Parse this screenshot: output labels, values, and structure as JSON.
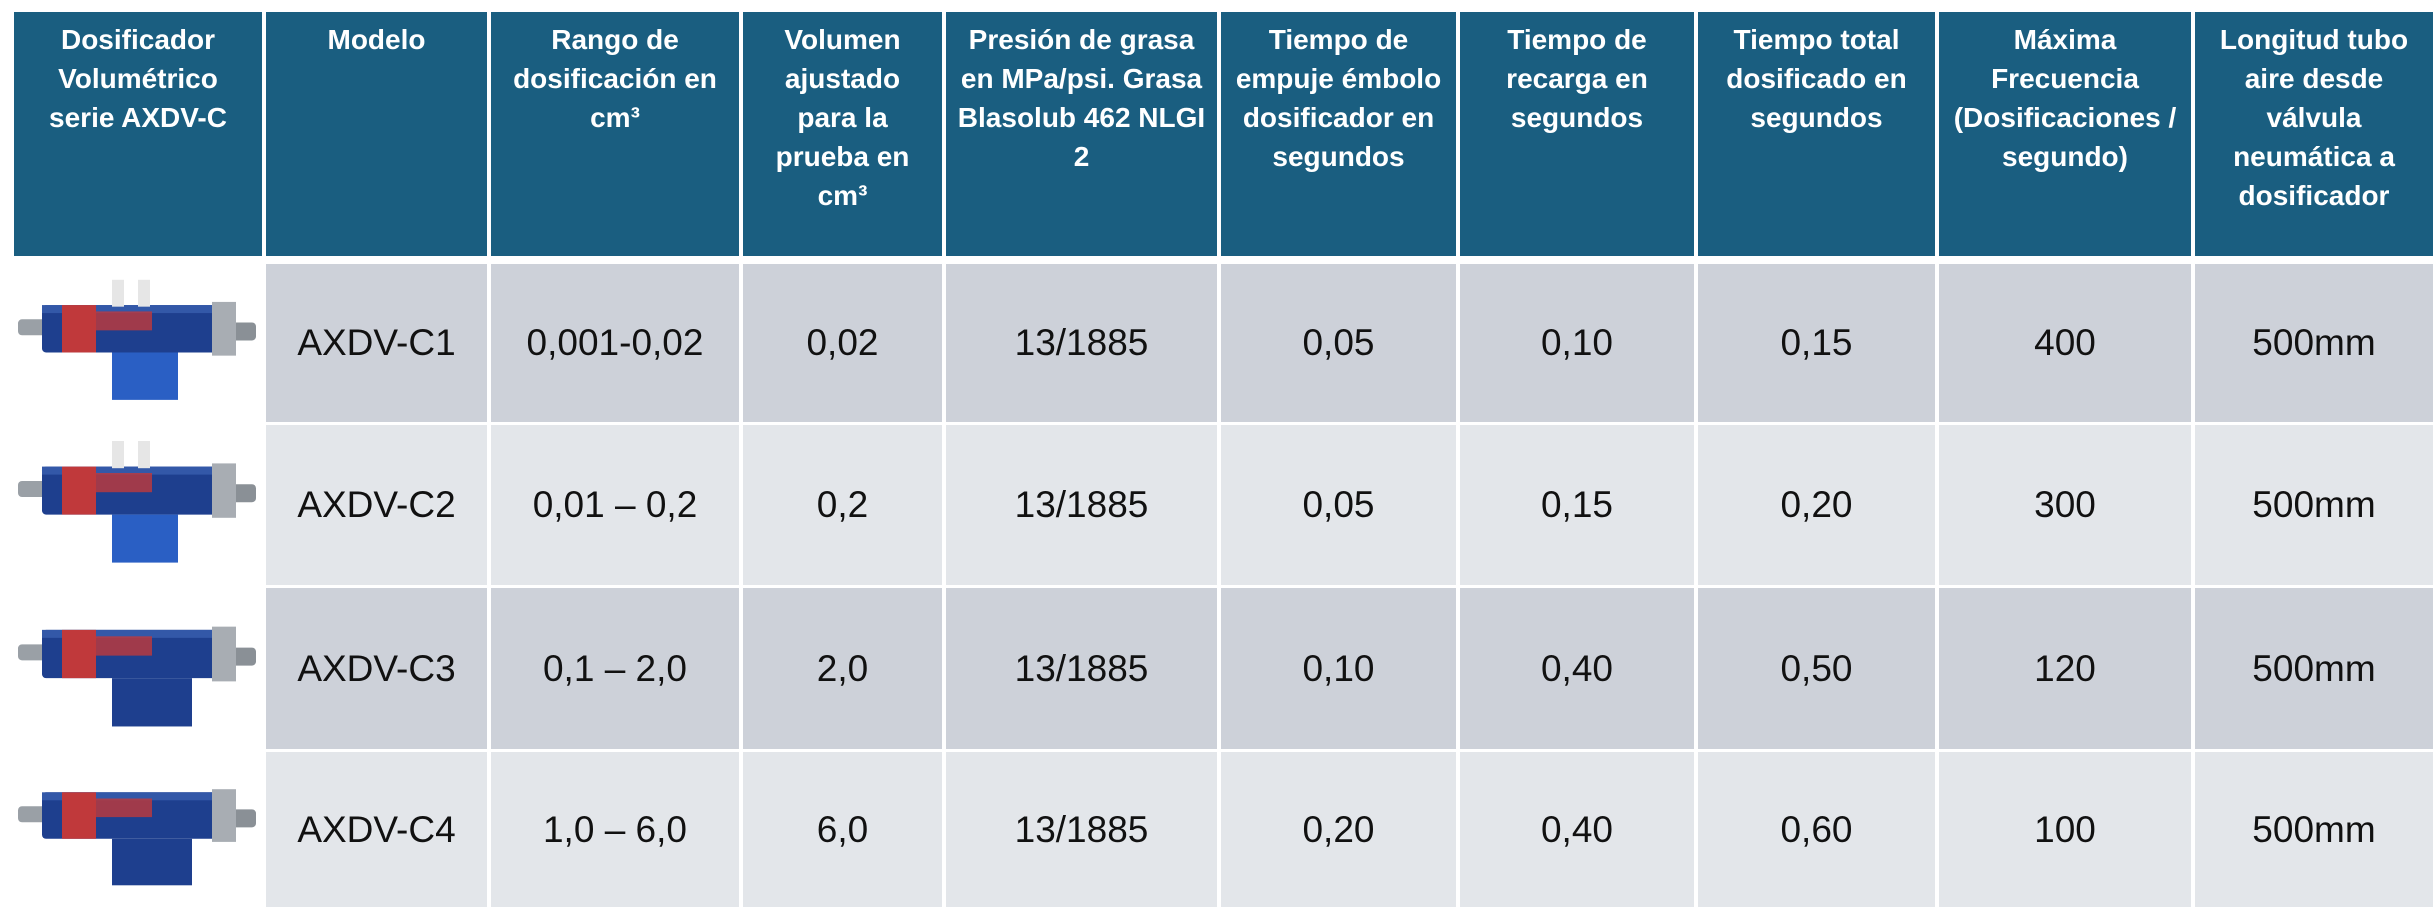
{
  "table": {
    "header": [
      "Dosificador Volumétrico serie AXDV-C",
      "Modelo",
      "Rango de dosificación en cm³",
      "Volumen ajustado para la prueba en cm³",
      "Presión de grasa en MPa/psi. Grasa Blasolub 462 NLGI 2",
      "Tiempo de empuje émbolo dosificador en segundos",
      "Tiempo de recarga en segundos",
      "Tiempo total dosificado en segundos",
      "Máxima Frecuencia (Dosificaciones / segundo)",
      "Longitud tubo aire desde válvula neumática a dosificador"
    ],
    "rows": [
      [
        "AXDV-C1",
        "0,001-0,02",
        "0,02",
        "13/1885",
        "0,05",
        "0,10",
        "0,15",
        "400",
        "500mm"
      ],
      [
        "AXDV-C2",
        "0,01 – 0,2",
        "0,2",
        "13/1885",
        "0,05",
        "0,15",
        "0,20",
        "300",
        "500mm"
      ],
      [
        "AXDV-C3",
        "0,1 – 2,0",
        "2,0",
        "13/1885",
        "0,10",
        "0,40",
        "0,50",
        "120",
        "500mm"
      ],
      [
        "AXDV-C4",
        "1,0 – 6,0",
        "6,0",
        "13/1885",
        "0,20",
        "0,40",
        "0,60",
        "100",
        "500mm"
      ]
    ]
  }
}
